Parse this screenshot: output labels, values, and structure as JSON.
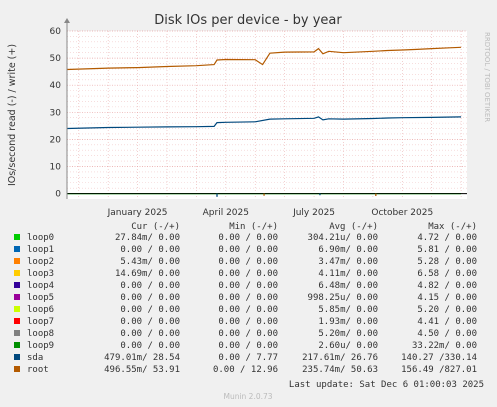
{
  "title": "Disk IOs per device - by year",
  "side_text": "RRDTOOL / TOBI OETIKER",
  "version": "Munin 2.0.73",
  "last_update": "Last update: Sat Dec  6 01:00:03 2025",
  "legend_header": {
    "cur": "Cur (-/+)",
    "min": "Min (-/+)",
    "avg": "Avg (-/+)",
    "max": "Max (-/+)"
  },
  "legend": [
    {
      "name": "loop0",
      "color": "#00cc00",
      "cur": "27.84m/  0.00",
      "min": "0.00 /  0.00",
      "avg": "304.21u/  0.00",
      "max": "4.72 /  0.00"
    },
    {
      "name": "loop1",
      "color": "#0066b3",
      "cur": "0.00 /  0.00",
      "min": "0.00 /  0.00",
      "avg": "6.90m/  0.00",
      "max": "5.81 /  0.00"
    },
    {
      "name": "loop2",
      "color": "#ff8000",
      "cur": "5.43m/  0.00",
      "min": "0.00 /  0.00",
      "avg": "3.47m/  0.00",
      "max": "5.28 /  0.00"
    },
    {
      "name": "loop3",
      "color": "#ffcc00",
      "cur": "14.69m/  0.00",
      "min": "0.00 /  0.00",
      "avg": "4.11m/  0.00",
      "max": "6.58 /  0.00"
    },
    {
      "name": "loop4",
      "color": "#330099",
      "cur": "0.00 /  0.00",
      "min": "0.00 /  0.00",
      "avg": "6.48m/  0.00",
      "max": "4.82 /  0.00"
    },
    {
      "name": "loop5",
      "color": "#990099",
      "cur": "0.00 /  0.00",
      "min": "0.00 /  0.00",
      "avg": "998.25u/  0.00",
      "max": "4.15 /  0.00"
    },
    {
      "name": "loop6",
      "color": "#ccff00",
      "cur": "0.00 /  0.00",
      "min": "0.00 /  0.00",
      "avg": "5.85m/  0.00",
      "max": "5.20 /  0.00"
    },
    {
      "name": "loop7",
      "color": "#ff0000",
      "cur": "0.00 /  0.00",
      "min": "0.00 /  0.00",
      "avg": "1.93m/  0.00",
      "max": "4.41 /  0.00"
    },
    {
      "name": "loop8",
      "color": "#808080",
      "cur": "0.00 /  0.00",
      "min": "0.00 /  0.00",
      "avg": "5.20m/  0.00",
      "max": "4.50 /  0.00"
    },
    {
      "name": "loop9",
      "color": "#008f00",
      "cur": "0.00 /  0.00",
      "min": "0.00 /  0.00",
      "avg": "2.60u/  0.00",
      "max": "33.22m/  0.00"
    },
    {
      "name": "sda",
      "color": "#00487d",
      "cur": "479.01m/ 28.54",
      "min": "0.00 /  7.77",
      "avg": "217.61m/ 26.76",
      "max": "140.27 /330.14"
    },
    {
      "name": "root",
      "color": "#b35a00",
      "cur": "496.55m/ 53.91",
      "min": "0.00 / 12.96",
      "avg": "235.74m/ 50.63",
      "max": "156.49 /827.01"
    }
  ],
  "chart_data": {
    "type": "line",
    "title": "Disk IOs per device - by year",
    "ylabel": "IOs/second read (-) / write (+)",
    "ylim": [
      -2,
      60
    ],
    "yticks": [
      0,
      10,
      20,
      30,
      40,
      50,
      60
    ],
    "x_tick_labels": [
      "January 2025",
      "April 2025",
      "July 2025",
      "October 2025"
    ],
    "x_tick_months": [
      12,
      15,
      18,
      21
    ],
    "x_range_months": [
      9.6,
      23.2
    ],
    "grid": true,
    "legend": "below",
    "series": [
      {
        "name": "root",
        "color": "#b35a00",
        "x": [
          9.6,
          11.0,
          12.0,
          13.0,
          14.0,
          14.6,
          14.7,
          15.0,
          16.0,
          16.25,
          16.5,
          17.0,
          18.0,
          18.15,
          18.3,
          18.5,
          19.0,
          20.0,
          20.5,
          21.0,
          21.5,
          22.0,
          22.6,
          23.0
        ],
        "y": [
          45.8,
          46.3,
          46.5,
          46.9,
          47.2,
          47.6,
          49.3,
          49.5,
          49.4,
          47.6,
          51.8,
          52.2,
          52.3,
          53.5,
          51.6,
          52.5,
          52.0,
          52.5,
          52.8,
          53.0,
          53.2,
          53.5,
          53.8,
          54.0
        ]
      },
      {
        "name": "sda",
        "color": "#00487d",
        "x": [
          9.6,
          11.0,
          12.0,
          13.0,
          14.0,
          14.6,
          14.7,
          15.0,
          16.0,
          16.5,
          17.0,
          18.0,
          18.15,
          18.3,
          18.5,
          19.0,
          20.0,
          20.5,
          21.0,
          22.0,
          23.0
        ],
        "y": [
          24.0,
          24.4,
          24.5,
          24.6,
          24.7,
          24.8,
          26.2,
          26.3,
          26.5,
          27.5,
          27.6,
          27.8,
          28.3,
          27.2,
          27.6,
          27.5,
          27.7,
          27.9,
          28.0,
          28.1,
          28.3
        ]
      },
      {
        "name": "loop0",
        "color": "#00cc00",
        "x": [
          9.6,
          23.0
        ],
        "y": [
          0,
          0
        ]
      }
    ]
  }
}
